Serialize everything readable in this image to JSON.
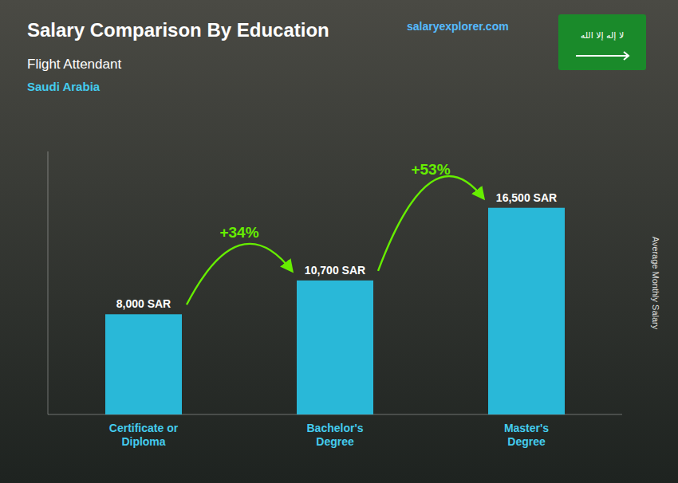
{
  "chart_data": {
    "type": "bar",
    "title": "Salary Comparison By Education",
    "subtitle": [
      "Flight Attendant",
      "Saudi Arabia"
    ],
    "branding": [
      "salary",
      "explorer",
      ".com"
    ],
    "flag_text": "لا إله إلا الله",
    "ylabel": "Average Monthly Salary",
    "categories": [
      "Certificate or\nDiploma",
      "Bachelor's\nDegree",
      "Master's\nDegree"
    ],
    "values": [
      8000,
      10700,
      16500
    ],
    "value_labels": [
      "8,000 SAR",
      "10,700 SAR",
      "16,500 SAR"
    ],
    "annotations": [
      "+34%",
      "+53%"
    ],
    "color": "#29b8d8",
    "ylim": [
      0,
      21000
    ],
    "data_labels": true,
    "tick_labels": "x"
  }
}
